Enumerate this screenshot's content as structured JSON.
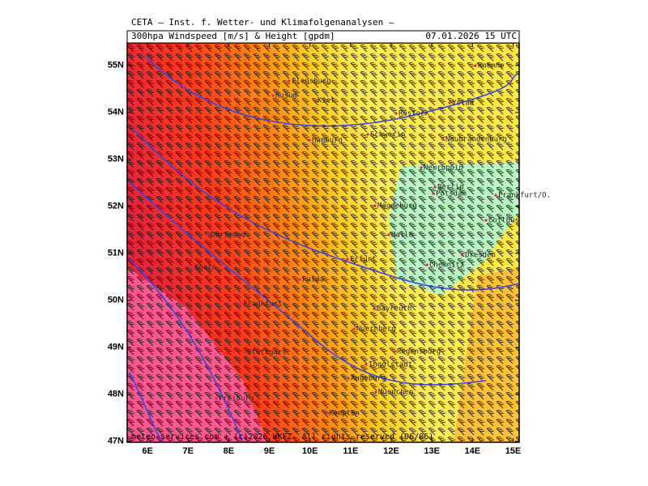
{
  "header": {
    "line1": "CETA — Inst. f. Wetter- und Klimafolgenanalysen —",
    "product": "300hpa Windspeed [m/s] & Height [gpdm]",
    "date": "07.01.2026 15 UTC"
  },
  "map": {
    "xlim": [
      5.5,
      15.15
    ],
    "ylim": [
      46.98,
      55.48
    ],
    "lon_ticks": [
      {
        "value": 6,
        "label": "6E"
      },
      {
        "value": 7,
        "label": "7E"
      },
      {
        "value": 8,
        "label": "8E"
      },
      {
        "value": 9,
        "label": "9E"
      },
      {
        "value": 10,
        "label": "10E"
      },
      {
        "value": 11,
        "label": "11E"
      },
      {
        "value": 12,
        "label": "12E"
      },
      {
        "value": 13,
        "label": "13E"
      },
      {
        "value": 14,
        "label": "14E"
      },
      {
        "value": 15,
        "label": "15E"
      }
    ],
    "lat_ticks": [
      {
        "value": 47,
        "label": "47N"
      },
      {
        "value": 48,
        "label": "48N"
      },
      {
        "value": 49,
        "label": "49N"
      },
      {
        "value": 50,
        "label": "50N"
      },
      {
        "value": 51,
        "label": "51N"
      },
      {
        "value": 52,
        "label": "52N"
      },
      {
        "value": 53,
        "label": "53N"
      },
      {
        "value": 54,
        "label": "54N"
      },
      {
        "value": 55,
        "label": "55N"
      }
    ],
    "cities": [
      "Flensburg",
      "Husum",
      "Kiel",
      "Rostock",
      "Roenne",
      "Ystad",
      "Schwerin",
      "Hamburg",
      "Neubrandenburg",
      "Neuruppin",
      "Berlin",
      "Potsdam",
      "Frankfurt/O.",
      "Magdeburg",
      "Cottbus",
      "Halle",
      "Erfurt",
      "Dresden",
      "Chemnitz",
      "Fulda",
      "Bayreuth",
      "Nuernberg",
      "Regensburg",
      "Ingolstadt",
      "Augsburg",
      "Muenchen",
      "Kempten",
      "Dortmund",
      "Koeln",
      "Frankfurt",
      "Stuttgart",
      "Freiburg"
    ]
  },
  "footer": "meteo-services.com + (c)2026 WKFZ. All rights reserved (06/06)"
}
